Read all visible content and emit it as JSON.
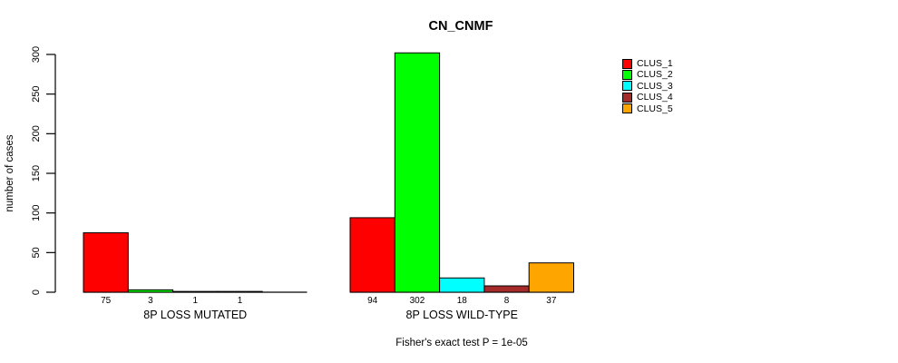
{
  "chart_data": {
    "type": "bar",
    "title": "CN_CNMF",
    "ylabel": "number of cases",
    "caption": "Fisher's exact test P = 1e-05",
    "ylim": [
      0,
      300
    ],
    "yticks": [
      0,
      50,
      100,
      150,
      200,
      250,
      300
    ],
    "grid": false,
    "legend_position": "right",
    "background_color": "#FFFFFF",
    "axis_color": "#000000",
    "clusters": [
      {
        "name": "CLUS_1",
        "color": "#FF0000"
      },
      {
        "name": "CLUS_2",
        "color": "#00FF00"
      },
      {
        "name": "CLUS_3",
        "color": "#00FFFF"
      },
      {
        "name": "CLUS_4",
        "color": "#A52A2A"
      },
      {
        "name": "CLUS_5",
        "color": "#FFA500"
      }
    ],
    "groups": [
      {
        "label": "8P LOSS MUTATED",
        "values": [
          75,
          3,
          1,
          1,
          0
        ],
        "bar_labels": [
          "75",
          "3",
          "1",
          "1",
          ""
        ]
      },
      {
        "label": "8P LOSS WILD-TYPE",
        "values": [
          94,
          302,
          18,
          8,
          37
        ],
        "bar_labels": [
          "94",
          "302",
          "18",
          "8",
          "37"
        ]
      }
    ]
  }
}
